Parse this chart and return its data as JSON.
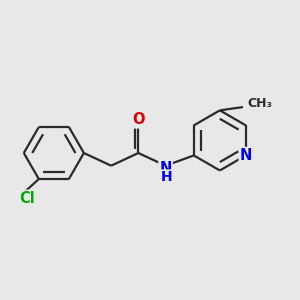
{
  "background_color": "#e8e8e8",
  "bond_color": "#2a2a2a",
  "bond_width": 1.6,
  "dbo": 0.055,
  "atom_colors": {
    "Cl": "#00aa00",
    "O": "#dd0000",
    "N": "#0000ee",
    "C": "#2a2a2a"
  },
  "font_size_atom": 10.5,
  "font_size_ch3": 9.0
}
